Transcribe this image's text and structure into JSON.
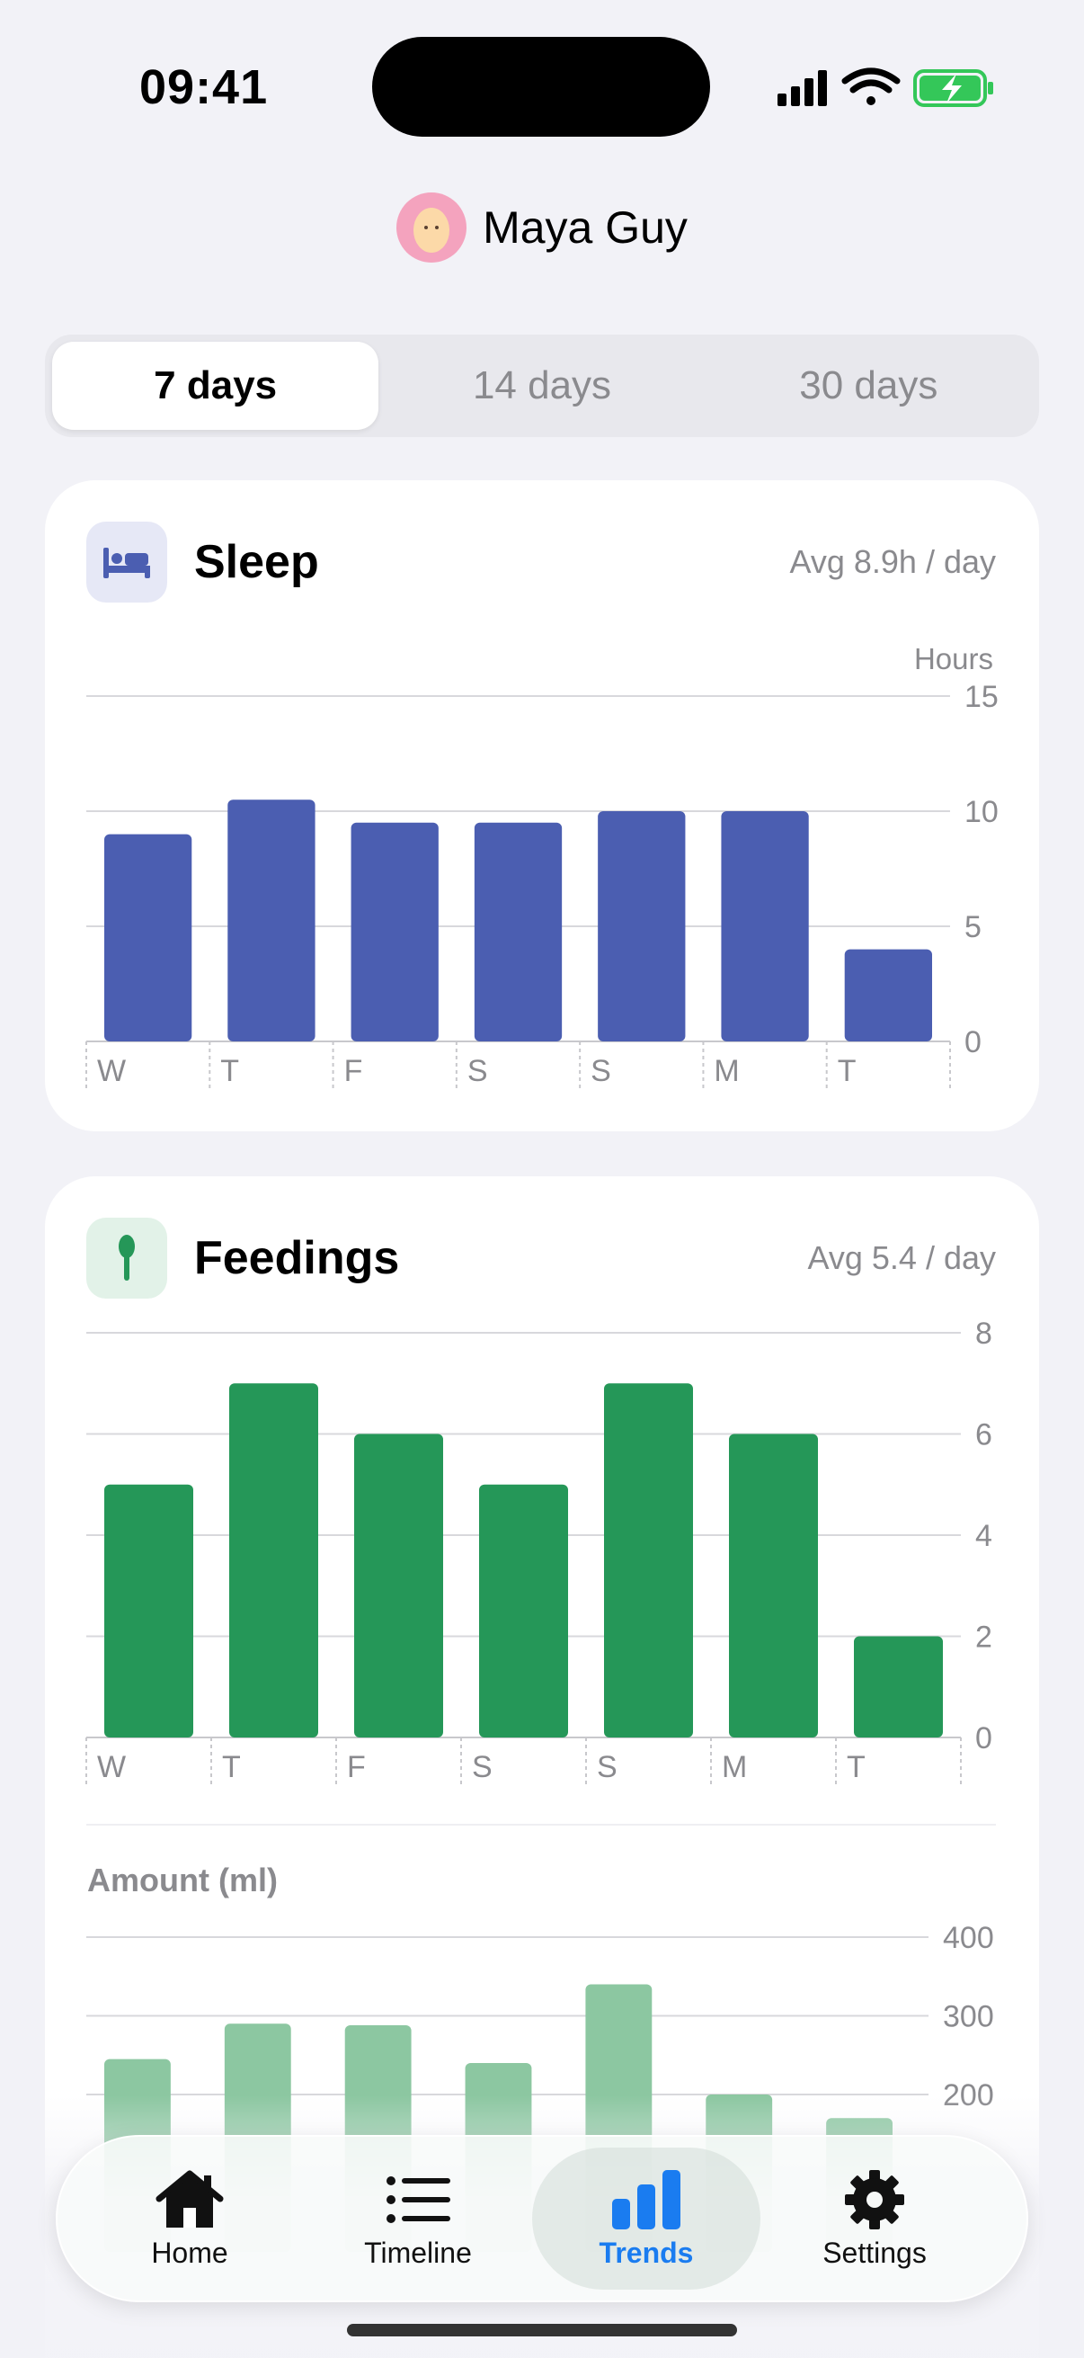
{
  "status_bar": {
    "time": "09:41"
  },
  "profile": {
    "name": "Maya Guy"
  },
  "range_tabs": [
    {
      "label": "7 days",
      "active": true
    },
    {
      "label": "14 days",
      "active": false
    },
    {
      "label": "30 days",
      "active": false
    }
  ],
  "sleep": {
    "title": "Sleep",
    "icon": "bed-icon",
    "avg": "Avg 8.9h / day",
    "accent": "#4b5eb1"
  },
  "feedings": {
    "title": "Feedings",
    "icon": "spoon-icon",
    "avg": "Avg 5.4 / day",
    "accent": "#259758",
    "amount_title": "Amount (ml)"
  },
  "chart_data": [
    {
      "type": "bar",
      "categories": [
        "W",
        "T",
        "F",
        "S",
        "S",
        "M",
        "T"
      ],
      "values": [
        9,
        10.5,
        9.5,
        9.5,
        10,
        10,
        4
      ],
      "ylabel": "Hours",
      "ylim": [
        0,
        15
      ],
      "yticks": [
        0,
        5,
        10,
        15
      ],
      "grid": true,
      "color": "#4b5eb1"
    },
    {
      "type": "bar",
      "categories": [
        "W",
        "T",
        "F",
        "S",
        "S",
        "M",
        "T"
      ],
      "values": [
        5,
        7,
        6,
        5,
        7,
        6,
        2
      ],
      "ylim": [
        0,
        8
      ],
      "yticks": [
        0,
        2,
        4,
        6,
        8
      ],
      "grid": true,
      "color": "#259758"
    },
    {
      "type": "bar",
      "values": [
        245,
        290,
        288,
        240,
        340,
        200,
        170
      ],
      "ylim": [
        0,
        400
      ],
      "yticks": [
        200,
        300,
        400
      ],
      "grid": true,
      "color": "#8cc7a1"
    }
  ],
  "tabbar": {
    "items": [
      {
        "label": "Home",
        "icon": "house-icon",
        "active": false
      },
      {
        "label": "Timeline",
        "icon": "list-icon",
        "active": false
      },
      {
        "label": "Trends",
        "icon": "bar-chart-icon",
        "active": true
      },
      {
        "label": "Settings",
        "icon": "gear-icon",
        "active": false
      }
    ],
    "active_color": "#1a7cf0"
  }
}
